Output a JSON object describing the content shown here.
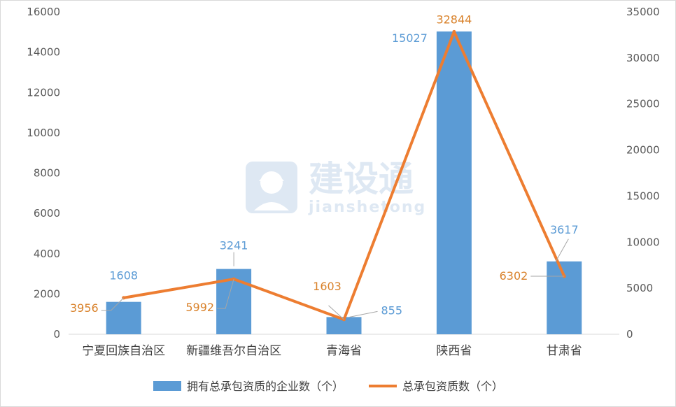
{
  "chart_data": {
    "type": "bar",
    "categories": [
      "宁夏回族自治区",
      "新疆维吾尔自治区",
      "青海省",
      "陕西省",
      "甘肃省"
    ],
    "series": [
      {
        "name": "拥有总承包资质的企业数（个）",
        "type": "bar",
        "axis": "left",
        "color": "#5b9bd5",
        "values": [
          1608,
          3241,
          855,
          15027,
          3617
        ]
      },
      {
        "name": "总承包资质数（个）",
        "type": "line",
        "axis": "right",
        "color": "#ed7d31",
        "values": [
          3956,
          5992,
          1603,
          32844,
          6302
        ]
      }
    ],
    "y_left": {
      "min": 0,
      "max": 16000,
      "step": 2000,
      "ticks": [
        "0",
        "2000",
        "4000",
        "6000",
        "8000",
        "10000",
        "12000",
        "14000",
        "16000"
      ]
    },
    "y_right": {
      "min": 0,
      "max": 35000,
      "step": 5000,
      "ticks": [
        "0",
        "5000",
        "10000",
        "15000",
        "20000",
        "25000",
        "30000",
        "35000"
      ]
    },
    "grid": false,
    "legend_position": "bottom"
  },
  "watermark": {
    "text": "建设通",
    "sub": "jianshetong"
  }
}
